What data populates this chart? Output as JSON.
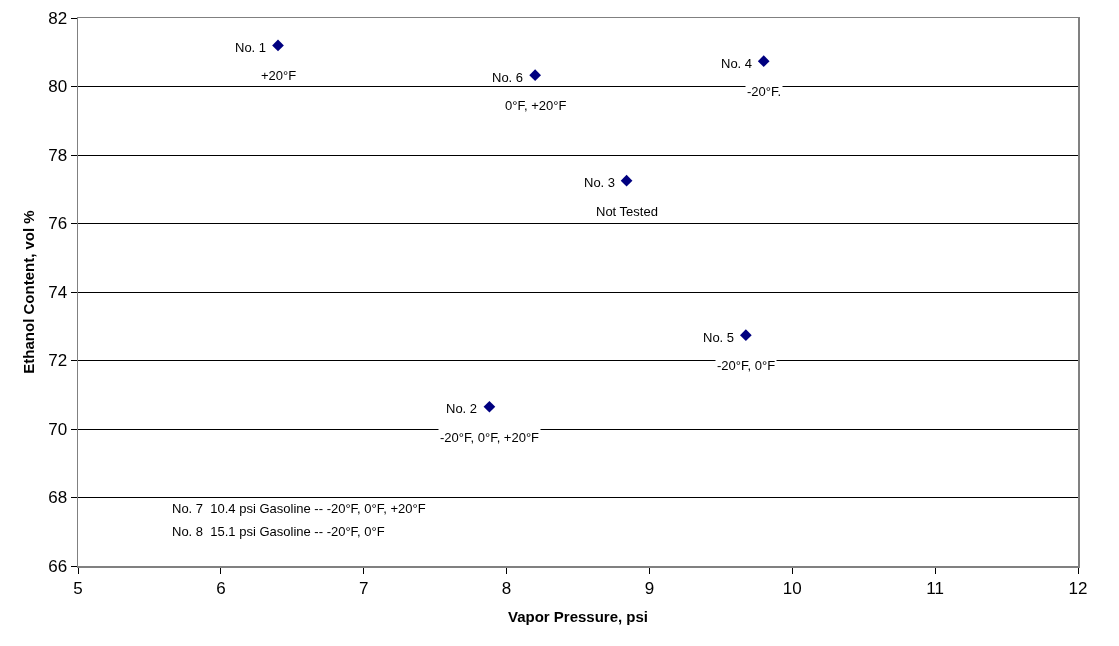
{
  "chart_data": {
    "type": "scatter",
    "xlabel": "Vapor Pressure, psi",
    "ylabel": "Ethanol Content, vol %",
    "x": [
      6.4,
      7.88,
      8.84,
      9.8,
      9.675,
      8.2
    ],
    "values": [
      81.2,
      70.65,
      77.25,
      80.74,
      72.74,
      80.33
    ],
    "color": "#000080",
    "marker": "diamond",
    "grid": "y",
    "xlim": [
      5,
      12
    ],
    "xticks": [
      5,
      6,
      7,
      8,
      9,
      10,
      11,
      12
    ],
    "ylim": [
      66,
      82
    ],
    "yticks": [
      66,
      68,
      70,
      72,
      74,
      76,
      78,
      80,
      82
    ],
    "annotations": [
      {
        "text": "No. 1",
        "x": 6.4,
        "y": 81.2
      },
      {
        "text": "+20°F",
        "x": 6.4,
        "y": 81.2
      },
      {
        "text": "No. 2",
        "x": 7.88,
        "y": 70.65
      },
      {
        "text": "-20°F, 0°F, +20°F",
        "x": 7.88,
        "y": 70.65
      },
      {
        "text": "No. 3",
        "x": 8.84,
        "y": 77.25
      },
      {
        "text": "Not Tested",
        "x": 8.84,
        "y": 77.25
      },
      {
        "text": "No. 4",
        "x": 9.8,
        "y": 80.74
      },
      {
        "text": "-20°F.",
        "x": 9.8,
        "y": 80.74
      },
      {
        "text": "No. 5",
        "x": 9.675,
        "y": 72.74
      },
      {
        "text": "-20°F, 0°F",
        "x": 9.675,
        "y": 72.74
      },
      {
        "text": "No. 6",
        "x": 8.2,
        "y": 80.33
      },
      {
        "text": "0°F, +20°F",
        "x": 8.2,
        "y": 80.33
      },
      "No. 7  10.4 psi Gasoline -- -20°F, 0°F, +20°F",
      "No. 8  15.1 psi Gasoline -- -20°F, 0°F"
    ]
  }
}
